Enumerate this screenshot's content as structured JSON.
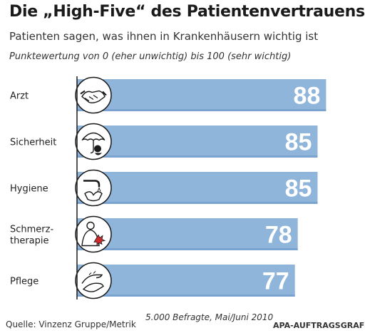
{
  "chart_data": {
    "type": "bar",
    "orientation": "horizontal",
    "title": "Die „High-Five“ des Patientenvertrauens",
    "subtitle": "Patienten sagen, was ihnen in Krankenhäusern wichtig ist",
    "note": "Punktewertung von 0 (eher unwichtig) bis 100 (sehr wichtig)",
    "xlim": [
      0,
      100
    ],
    "grid": false,
    "categories": [
      {
        "label_lines": [
          "Arzt"
        ],
        "icon": "handshake-icon"
      },
      {
        "label_lines": [
          "Sicherheit"
        ],
        "icon": "umbrella-icon"
      },
      {
        "label_lines": [
          "Hygiene"
        ],
        "icon": "hand-washing-icon"
      },
      {
        "label_lines": [
          "Schmerz-",
          "therapie"
        ],
        "icon": "pain-back-icon"
      },
      {
        "label_lines": [
          "Pflege"
        ],
        "icon": "caring-hands-icon"
      }
    ],
    "values": [
      88,
      85,
      85,
      78,
      77
    ],
    "colors": {
      "bar": "#8fb5da",
      "bar_dark": "#7aa4cf",
      "value_text": "#ffffff",
      "icon_fill": "#ffffff",
      "icon_stroke": "#1a1a1a",
      "axis": "#1a1a1a"
    }
  },
  "footer": {
    "source": "Quelle: Vinzenz Gruppe/Metrik",
    "sample": "5.000 Befragte, Mai/Juni 2010",
    "credit": "APA-AUFTRAGSGRAFIK"
  }
}
